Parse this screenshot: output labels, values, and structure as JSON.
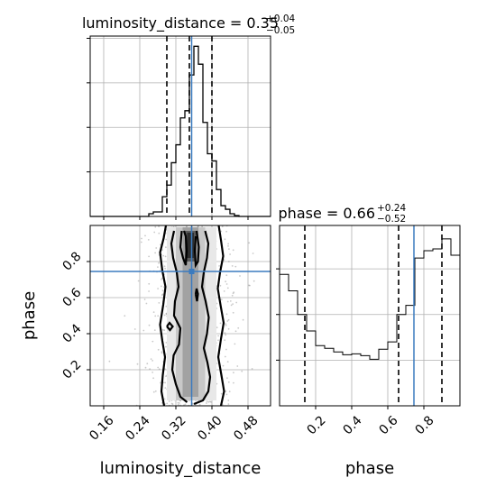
{
  "chart_data": [
    {
      "type": "histogram",
      "panel": "luminosity_distance marginal",
      "title": {
        "main": "luminosity_distance = 0.35",
        "sup": "+0.04",
        "sub": "−0.05"
      },
      "x_range": [
        0.13,
        0.53
      ],
      "bin_edges": [
        0.13,
        0.14,
        0.15,
        0.16,
        0.17,
        0.18,
        0.19,
        0.2,
        0.21,
        0.22,
        0.23,
        0.24,
        0.25,
        0.26,
        0.27,
        0.28,
        0.29,
        0.3,
        0.31,
        0.32,
        0.33,
        0.34,
        0.35,
        0.36,
        0.37,
        0.38,
        0.39,
        0.4,
        0.41,
        0.42,
        0.43,
        0.44,
        0.45,
        0.46,
        0.47,
        0.48,
        0.49,
        0.5,
        0.51,
        0.52,
        0.53
      ],
      "counts": [
        0,
        0,
        0,
        0,
        0,
        0,
        0,
        0,
        0,
        0,
        0,
        0,
        0,
        3,
        5,
        5,
        22,
        35,
        60,
        80,
        110,
        118,
        158,
        190,
        170,
        105,
        70,
        62,
        30,
        12,
        8,
        3,
        1,
        0,
        0,
        0,
        0,
        0,
        0,
        0
      ],
      "quantiles": [
        0.3,
        0.35,
        0.4
      ],
      "truth": 0.355,
      "y_ticks_count": 4
    },
    {
      "type": "contour",
      "panel": "phase vs luminosity_distance",
      "xlabel": "luminosity_distance",
      "ylabel": "phase",
      "x_range": [
        0.13,
        0.53
      ],
      "y_range": [
        0.0,
        1.0
      ],
      "x_ticks": [
        "0.16",
        "0.24",
        "0.32",
        "0.40",
        "0.48"
      ],
      "x_tick_values": [
        0.16,
        0.24,
        0.32,
        0.4,
        0.48
      ],
      "y_ticks": [
        "0.2",
        "0.4",
        "0.6",
        "0.8"
      ],
      "y_tick_values": [
        0.2,
        0.4,
        0.6,
        0.8
      ],
      "truth": {
        "x": 0.355,
        "y": 0.745
      }
    },
    {
      "type": "histogram",
      "panel": "phase marginal",
      "title": {
        "main": "phase = 0.66",
        "sup": "+0.24",
        "sub": "−0.52"
      },
      "xlabel": "phase",
      "x_range": [
        0.0,
        1.0
      ],
      "bin_edges": [
        0.0,
        0.05,
        0.1,
        0.15,
        0.2,
        0.25,
        0.3,
        0.35,
        0.4,
        0.45,
        0.5,
        0.55,
        0.6,
        0.65,
        0.7,
        0.75,
        0.8,
        0.85,
        0.9,
        0.95,
        1.0
      ],
      "counts": [
        144,
        126,
        100,
        82,
        66,
        63,
        59,
        56,
        57,
        55,
        51,
        62,
        70,
        100,
        110,
        162,
        170,
        172,
        183,
        165
      ],
      "x_ticks": [
        "0.2",
        "0.4",
        "0.6",
        "0.8"
      ],
      "x_tick_values": [
        0.2,
        0.4,
        0.6,
        0.8
      ],
      "quantiles": [
        0.14,
        0.66,
        0.9
      ],
      "truth": 0.745,
      "y_ticks_count": 3
    }
  ]
}
